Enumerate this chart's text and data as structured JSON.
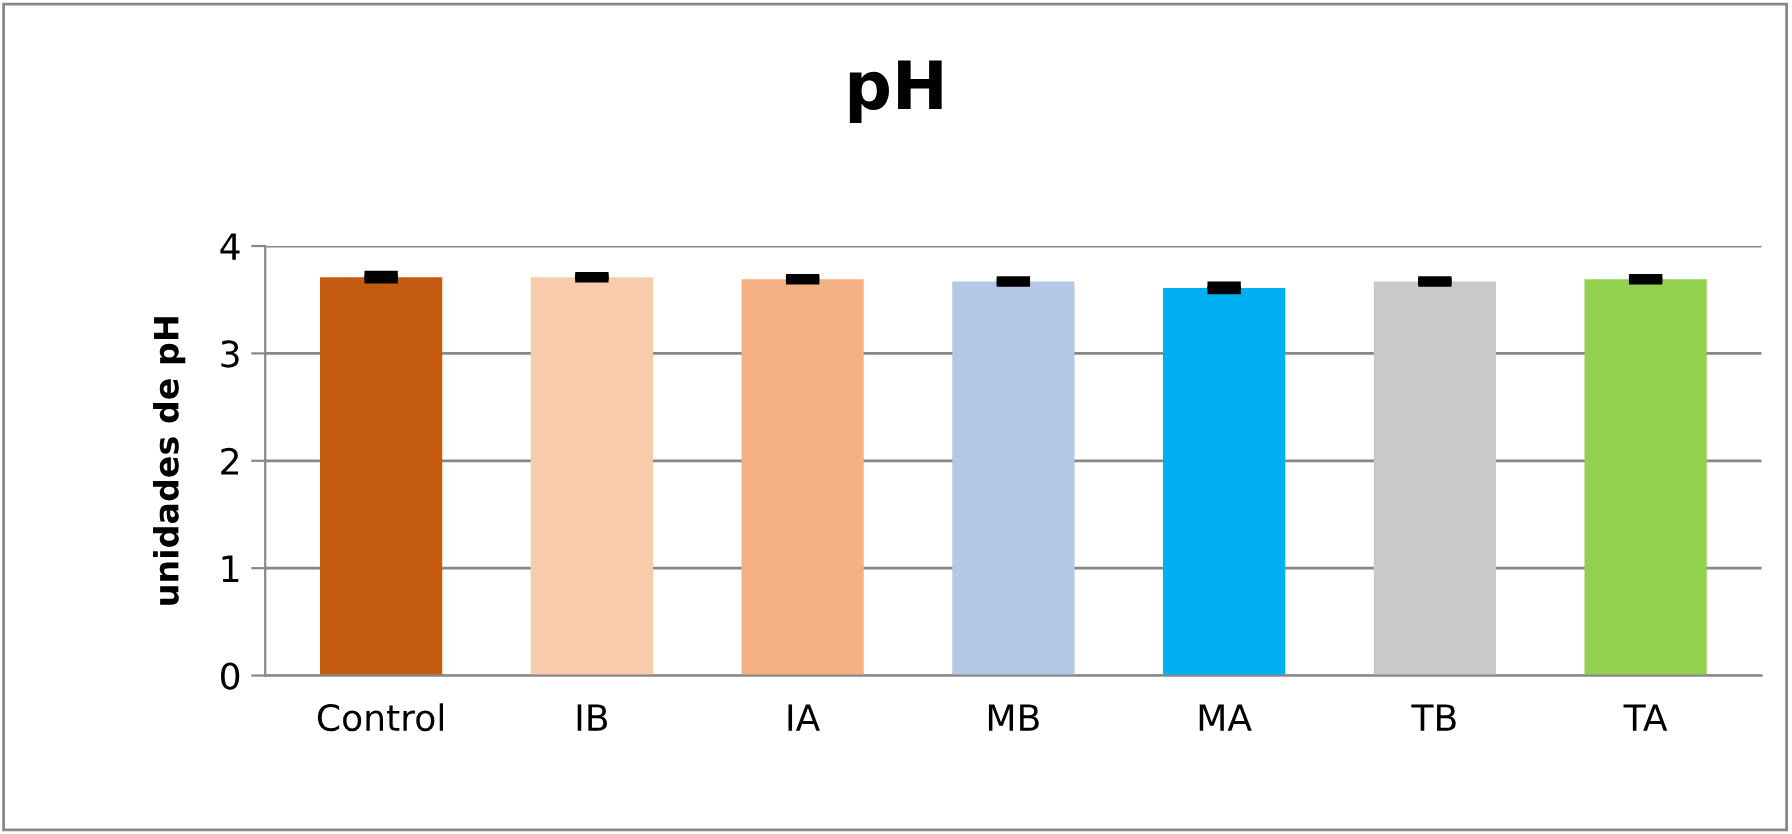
{
  "chart_data": {
    "type": "bar",
    "title": "pH",
    "ylabel": "unidades de pH",
    "categories": [
      "Control",
      "IB",
      "IA",
      "MB",
      "MA",
      "TB",
      "TA"
    ],
    "values": [
      3.71,
      3.71,
      3.69,
      3.67,
      3.61,
      3.67,
      3.69
    ],
    "errors": [
      0.02,
      0.01,
      0.01,
      0.01,
      0.02,
      0.01,
      0.01
    ],
    "colors": [
      "#c55a11",
      "#f8cbad",
      "#f4b183",
      "#b4c7e7",
      "#00b0f0",
      "#c9c9c9",
      "#92d050"
    ],
    "ylim": [
      0,
      4
    ],
    "yticks": [
      0,
      1,
      2,
      3,
      4
    ],
    "grid": "y",
    "legend": false
  }
}
